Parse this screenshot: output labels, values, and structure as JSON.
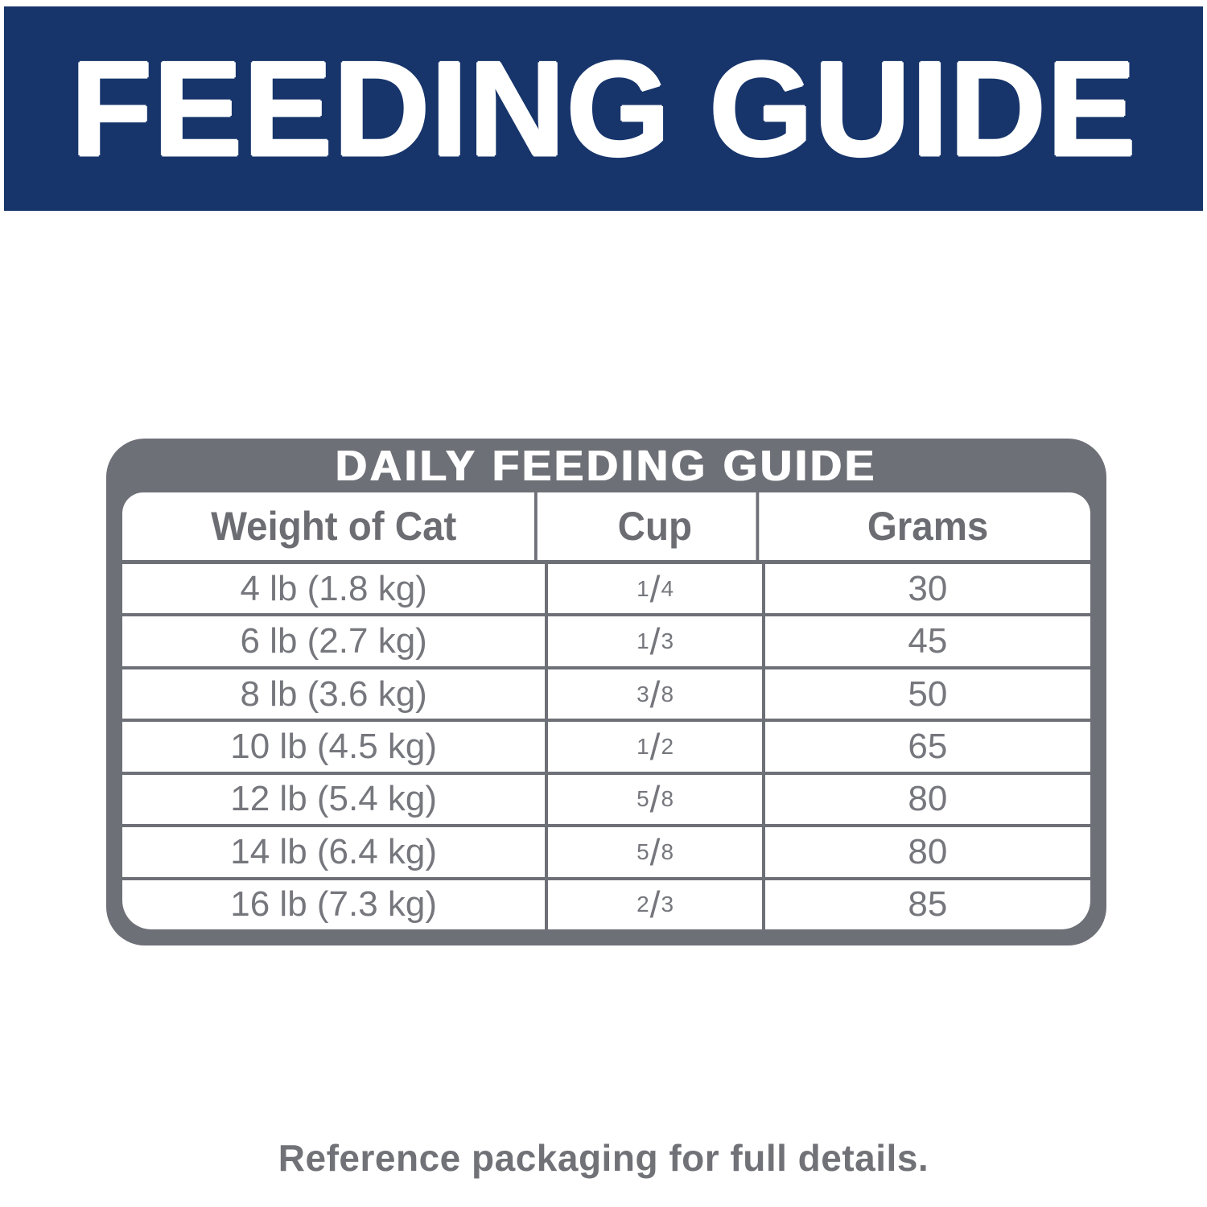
{
  "header": {
    "title": "FEEDING GUIDE"
  },
  "table": {
    "title": "DAILY FEEDING GUIDE",
    "columns": [
      "Weight of Cat",
      "Cup",
      "Grams"
    ],
    "rows": [
      {
        "weight": "4 lb (1.8 kg)",
        "cup_num": "1",
        "cup_slash": "/",
        "cup_den": "4",
        "grams": "30"
      },
      {
        "weight": "6 lb (2.7 kg)",
        "cup_num": "1",
        "cup_slash": "/",
        "cup_den": "3",
        "grams": "45"
      },
      {
        "weight": "8 lb (3.6 kg)",
        "cup_num": "3",
        "cup_slash": "/",
        "cup_den": "8",
        "grams": "50"
      },
      {
        "weight": "10 lb (4.5 kg)",
        "cup_num": "1",
        "cup_slash": "/",
        "cup_den": "2",
        "grams": "65"
      },
      {
        "weight": "12 lb (5.4 kg)",
        "cup_num": "5",
        "cup_slash": "/",
        "cup_den": "8",
        "grams": "80"
      },
      {
        "weight": "14 lb (6.4 kg)",
        "cup_num": "5",
        "cup_slash": "/",
        "cup_den": "8",
        "grams": "80"
      },
      {
        "weight": "16 lb (7.3 kg)",
        "cup_num": "2",
        "cup_slash": "/",
        "cup_den": "3",
        "grams": "85"
      }
    ]
  },
  "footer": {
    "note": "Reference packaging for full details."
  },
  "colors": {
    "banner_blue": "#17356b",
    "table_gray": "#6e7077",
    "data_text_gray": "#76777d",
    "header_text_gray": "#6c6d73",
    "white": "#ffffff"
  }
}
